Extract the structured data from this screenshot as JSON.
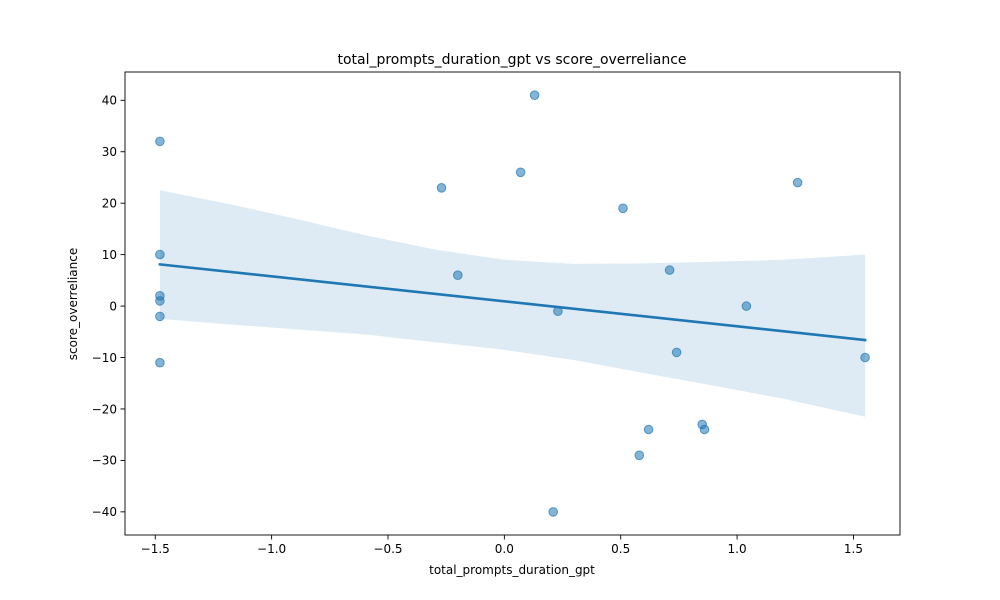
{
  "chart_data": {
    "type": "scatter",
    "title": "total_prompts_duration_gpt vs score_overreliance",
    "xlabel": "total_prompts_duration_gpt",
    "ylabel": "score_overreliance",
    "xlim": [
      -1.63,
      1.7
    ],
    "ylim": [
      -44.5,
      45.5
    ],
    "xticks": [
      -1.5,
      -1.0,
      -0.5,
      0.0,
      0.5,
      1.0,
      1.5
    ],
    "xtick_labels": [
      "−1.5",
      "−1.0",
      "−0.5",
      "0.0",
      "0.5",
      "1.0",
      "1.5"
    ],
    "yticks": [
      -40,
      -30,
      -20,
      -10,
      0,
      10,
      20,
      30,
      40
    ],
    "ytick_labels": [
      "−40",
      "−30",
      "−20",
      "−10",
      "0",
      "10",
      "20",
      "30",
      "40"
    ],
    "grid": false,
    "series": [
      {
        "points": [
          [
            -1.48,
            32
          ],
          [
            -1.48,
            10
          ],
          [
            -1.48,
            2
          ],
          [
            -1.48,
            1
          ],
          [
            -1.48,
            -2
          ],
          [
            -1.48,
            -11
          ],
          [
            -0.27,
            23
          ],
          [
            -0.2,
            6
          ],
          [
            0.07,
            26
          ],
          [
            0.13,
            41
          ],
          [
            0.21,
            -40
          ],
          [
            0.23,
            -1
          ],
          [
            0.51,
            19
          ],
          [
            0.58,
            -29
          ],
          [
            0.62,
            -24
          ],
          [
            0.71,
            7
          ],
          [
            0.74,
            -9
          ],
          [
            0.85,
            -23
          ],
          [
            0.86,
            -24
          ],
          [
            1.04,
            0
          ],
          [
            1.26,
            24
          ],
          [
            1.55,
            -10
          ]
        ],
        "color": "#1f77b4"
      }
    ],
    "regression": {
      "x": [
        -1.48,
        1.55
      ],
      "y": [
        8.1,
        -6.6
      ],
      "color": "#1f77b4",
      "ci_band": {
        "x": [
          -1.48,
          -1.2,
          -0.9,
          -0.6,
          -0.3,
          0.0,
          0.3,
          0.6,
          0.9,
          1.2,
          1.55
        ],
        "upper": [
          22.5,
          20.0,
          17.0,
          13.8,
          11.0,
          9.0,
          8.2,
          8.3,
          8.6,
          9.0,
          10.0
        ],
        "lower": [
          -2.5,
          -3.5,
          -4.5,
          -5.5,
          -7.0,
          -8.5,
          -10.5,
          -13.0,
          -15.5,
          -18.0,
          -21.5
        ],
        "color": "#1f77b4"
      }
    }
  }
}
